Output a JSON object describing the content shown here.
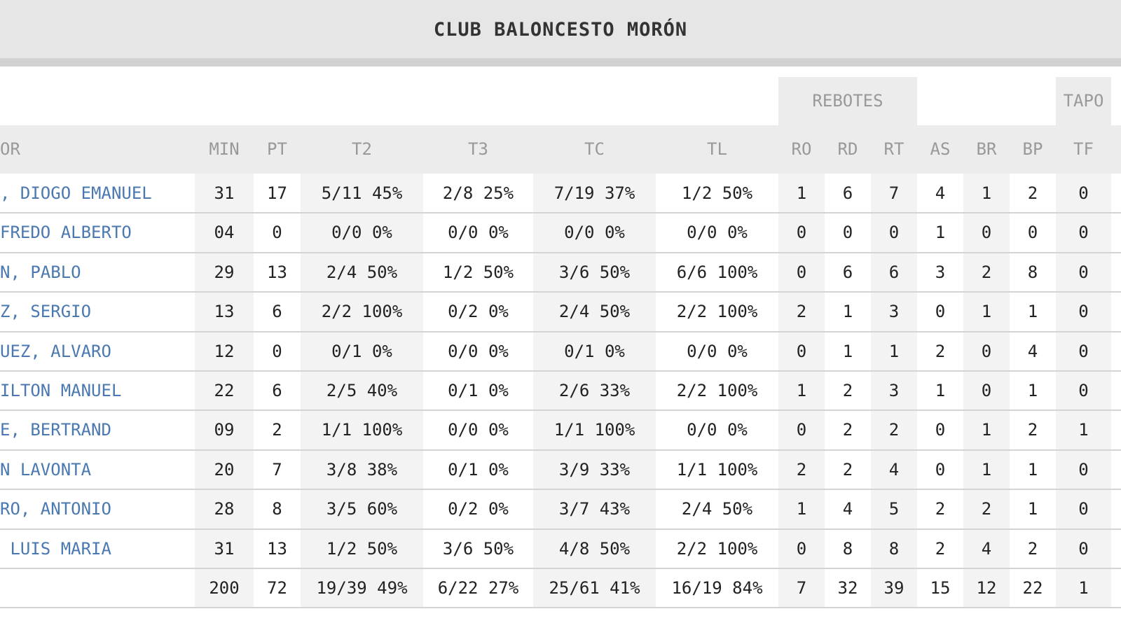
{
  "header": {
    "title": "CLUB BALONCESTO MORÓN"
  },
  "table": {
    "groups": [
      {
        "label": "REBOTES",
        "from": 7,
        "to": 9
      },
      {
        "label": "TAPO",
        "from": 13,
        "to": 13
      }
    ],
    "columns": [
      "OR",
      "MIN",
      "PT",
      "T2",
      "T3",
      "TC",
      "TL",
      "RO",
      "RD",
      "RT",
      "AS",
      "BR",
      "BP",
      "TF"
    ],
    "rows": [
      [
        ", DIOGO EMANUEL",
        "31",
        "17",
        "5/11 45%",
        "2/8 25%",
        "7/19 37%",
        "1/2 50%",
        "1",
        "6",
        "7",
        "4",
        "1",
        "2",
        "0"
      ],
      [
        "FREDO ALBERTO",
        "04",
        "0",
        "0/0 0%",
        "0/0 0%",
        "0/0 0%",
        "0/0 0%",
        "0",
        "0",
        "0",
        "1",
        "0",
        "0",
        "0"
      ],
      [
        "N, PABLO",
        "29",
        "13",
        "2/4 50%",
        "1/2 50%",
        "3/6 50%",
        "6/6 100%",
        "0",
        "6",
        "6",
        "3",
        "2",
        "8",
        "0"
      ],
      [
        "Z, SERGIO",
        "13",
        "6",
        "2/2 100%",
        "0/2 0%",
        "2/4 50%",
        "2/2 100%",
        "2",
        "1",
        "3",
        "0",
        "1",
        "1",
        "0"
      ],
      [
        "UEZ, ALVARO",
        "12",
        "0",
        "0/1 0%",
        "0/0 0%",
        "0/1 0%",
        "0/0 0%",
        "0",
        "1",
        "1",
        "2",
        "0",
        "4",
        "0"
      ],
      [
        "ILTON MANUEL",
        "22",
        "6",
        "2/5 40%",
        "0/1 0%",
        "2/6 33%",
        "2/2 100%",
        "1",
        "2",
        "3",
        "1",
        "0",
        "1",
        "0"
      ],
      [
        "E, BERTRAND",
        "09",
        "2",
        "1/1 100%",
        "0/0 0%",
        "1/1 100%",
        "0/0 0%",
        "0",
        "2",
        "2",
        "0",
        "1",
        "2",
        "1"
      ],
      [
        "N LAVONTA",
        "20",
        "7",
        "3/8 38%",
        "0/1 0%",
        "3/9 33%",
        "1/1 100%",
        "2",
        "2",
        "4",
        "0",
        "1",
        "1",
        "0"
      ],
      [
        "RO, ANTONIO",
        "28",
        "8",
        "3/5 60%",
        "0/2 0%",
        "3/7 43%",
        "2/4 50%",
        "1",
        "4",
        "5",
        "2",
        "2",
        "1",
        "0"
      ],
      [
        " LUIS MARIA",
        "31",
        "13",
        "1/2 50%",
        "3/6 50%",
        "4/8 50%",
        "2/2 100%",
        "0",
        "8",
        "8",
        "2",
        "4",
        "2",
        "0"
      ]
    ],
    "totals": [
      "200",
      "72",
      "19/39 49%",
      "6/22 27%",
      "25/61 41%",
      "16/19 84%",
      "7",
      "32",
      "39",
      "15",
      "12",
      "22",
      "1"
    ]
  }
}
